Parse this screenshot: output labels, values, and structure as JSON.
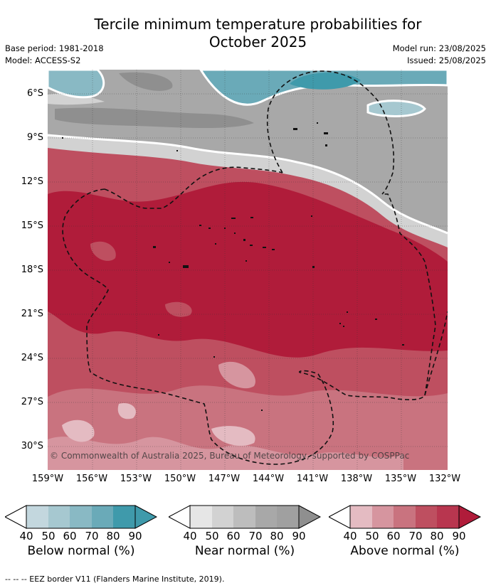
{
  "title": {
    "line1": "Tercile minimum temperature probabilities for",
    "line2": "October 2025"
  },
  "meta": {
    "base_period": "Base period: 1981-2018",
    "model": "Model: ACCESS-S2",
    "model_run": "Model run: 23/08/2025",
    "issued": "Issued: 25/08/2025"
  },
  "map": {
    "lat_labels": [
      "6°S",
      "9°S",
      "12°S",
      "15°S",
      "18°S",
      "21°S",
      "24°S",
      "27°S",
      "30°S"
    ],
    "lon_labels": [
      "159°W",
      "156°W",
      "153°W",
      "150°W",
      "147°W",
      "144°W",
      "141°W",
      "138°W",
      "135°W",
      "132°W"
    ],
    "copyright": "© Commonwealth of Australia 2025, Bureau of Meteorology, supported by COSPPac"
  },
  "legends": [
    {
      "title": "Below normal (%)",
      "ticks": [
        "40",
        "50",
        "60",
        "70",
        "80",
        "90"
      ],
      "colors": [
        "#c3d7de",
        "#a6c8d0",
        "#89b9c4",
        "#6aaab8",
        "#3f9aab"
      ]
    },
    {
      "title": "Near normal (%)",
      "ticks": [
        "40",
        "50",
        "60",
        "70",
        "80",
        "90"
      ],
      "colors": [
        "#e6e6e6",
        "#d2d2d2",
        "#bdbdbd",
        "#a8a8a8",
        "#8f8f8f"
      ]
    },
    {
      "title": "Above normal (%)",
      "ticks": [
        "40",
        "50",
        "60",
        "70",
        "80",
        "90"
      ],
      "colors": [
        "#e4bbc2",
        "#d6959f",
        "#c9737f",
        "#be4f60",
        "#b01c3a"
      ]
    }
  ],
  "footnote": "--  --  -- EEZ border V11 (Flanders Marine Institute, 2019)."
}
